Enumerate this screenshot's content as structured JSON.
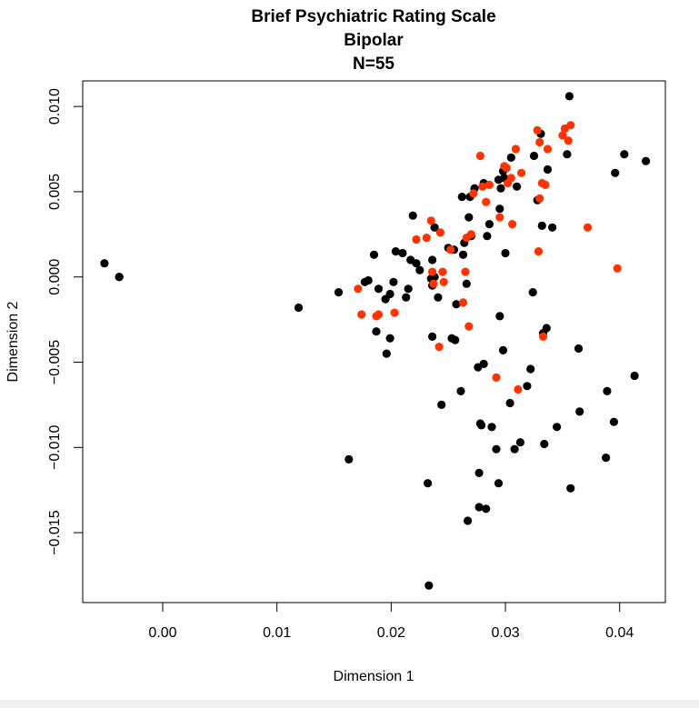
{
  "chart_data": {
    "type": "scatter",
    "title": "Brief Psychiatric Rating Scale",
    "subtitle_lines": [
      "Bipolar",
      "N=55"
    ],
    "xlabel": "Dimension 1",
    "ylabel": "Dimension 2",
    "xlim": [
      -0.007,
      0.044
    ],
    "ylim": [
      -0.0191,
      0.0115
    ],
    "x_ticks": [
      0.0,
      0.01,
      0.02,
      0.03,
      0.04
    ],
    "x_tick_labels": [
      "0.00",
      "0.01",
      "0.02",
      "0.03",
      "0.04"
    ],
    "y_ticks": [
      -0.015,
      -0.01,
      -0.005,
      0.0,
      0.005,
      0.01
    ],
    "y_tick_labels": [
      "−0.015",
      "−0.010",
      "−0.005",
      "0.000",
      "0.005",
      "0.010"
    ],
    "grid": false,
    "legend": "none",
    "series": [
      {
        "color": "#000000",
        "points": [
          [
            -0.0051,
            0.0008
          ],
          [
            -0.0038,
            0.0
          ],
          [
            -0.0038,
            0.0
          ],
          [
            0.0119,
            -0.0018
          ],
          [
            0.0154,
            -0.0009
          ],
          [
            0.0163,
            -0.0107
          ],
          [
            0.0177,
            -0.0003
          ],
          [
            0.018,
            -0.0002
          ],
          [
            0.0185,
            0.0013
          ],
          [
            0.0187,
            -0.0032
          ],
          [
            0.0189,
            -0.0007
          ],
          [
            0.0195,
            -0.0013
          ],
          [
            0.0196,
            -0.0045
          ],
          [
            0.0199,
            -0.0036
          ],
          [
            0.0199,
            -0.001
          ],
          [
            0.0202,
            -0.0003
          ],
          [
            0.0204,
            0.0015
          ],
          [
            0.021,
            0.0014
          ],
          [
            0.0213,
            -0.0012
          ],
          [
            0.0215,
            -0.0007
          ],
          [
            0.0217,
            0.001
          ],
          [
            0.0219,
            0.0036
          ],
          [
            0.0222,
            0.0008
          ],
          [
            0.0225,
            0.0004
          ],
          [
            0.0232,
            -0.0121
          ],
          [
            0.0233,
            -0.0181
          ],
          [
            0.0235,
            -0.0001
          ],
          [
            0.0236,
            -0.0005
          ],
          [
            0.0236,
            0.001
          ],
          [
            0.0236,
            -0.0035
          ],
          [
            0.0238,
            0.0029
          ],
          [
            0.0238,
            0.0
          ],
          [
            0.0241,
            -0.0012
          ],
          [
            0.0244,
            -0.0075
          ],
          [
            0.025,
            0.0017
          ],
          [
            0.0253,
            -0.0036
          ],
          [
            0.0255,
            0.0016
          ],
          [
            0.0256,
            -0.0037
          ],
          [
            0.0257,
            -0.0016
          ],
          [
            0.0261,
            -0.0067
          ],
          [
            0.0262,
            0.0047
          ],
          [
            0.0263,
            0.0013
          ],
          [
            0.0264,
            0.002
          ],
          [
            0.0266,
            -0.0004
          ],
          [
            0.0267,
            -0.0143
          ],
          [
            0.0268,
            0.0035
          ],
          [
            0.0269,
            0.0047
          ],
          [
            0.027,
            0.0024
          ],
          [
            0.0273,
            0.0052
          ],
          [
            0.0276,
            -0.0053
          ],
          [
            0.0277,
            -0.0115
          ],
          [
            0.0277,
            -0.0135
          ],
          [
            0.0278,
            -0.0086
          ],
          [
            0.0279,
            -0.0087
          ],
          [
            0.0281,
            -0.0051
          ],
          [
            0.0281,
            0.0055
          ],
          [
            0.0283,
            -0.0136
          ],
          [
            0.0284,
            0.0024
          ],
          [
            0.0286,
            0.0031
          ],
          [
            0.0288,
            -0.0088
          ],
          [
            0.0292,
            -0.0101
          ],
          [
            0.0294,
            -0.0121
          ],
          [
            0.0294,
            0.0057
          ],
          [
            0.0295,
            0.004
          ],
          [
            0.0295,
            -0.0023
          ],
          [
            0.0296,
            0.0052
          ],
          [
            0.0298,
            0.0062
          ],
          [
            0.0298,
            -0.0043
          ],
          [
            0.0299,
            0.0058
          ],
          [
            0.03,
            0.0014
          ],
          [
            0.0304,
            -0.0074
          ],
          [
            0.0305,
            0.007
          ],
          [
            0.0308,
            -0.0101
          ],
          [
            0.031,
            0.0053
          ],
          [
            0.0313,
            -0.0097
          ],
          [
            0.0319,
            -0.0064
          ],
          [
            0.0322,
            -0.0054
          ],
          [
            0.0324,
            -0.0009
          ],
          [
            0.0325,
            0.0071
          ],
          [
            0.0328,
            0.0045
          ],
          [
            0.0331,
            0.0084
          ],
          [
            0.0332,
            0.003
          ],
          [
            0.0333,
            -0.0033
          ],
          [
            0.0334,
            -0.0098
          ],
          [
            0.0336,
            -0.003
          ],
          [
            0.0337,
            0.0063
          ],
          [
            0.0341,
            0.0029
          ],
          [
            0.0345,
            -0.0088
          ],
          [
            0.0354,
            0.0072
          ],
          [
            0.0356,
            0.0106
          ],
          [
            0.0357,
            -0.0124
          ],
          [
            0.0364,
            -0.0042
          ],
          [
            0.0365,
            -0.0079
          ],
          [
            0.0388,
            -0.0106
          ],
          [
            0.0389,
            -0.0067
          ],
          [
            0.0396,
            0.0061
          ],
          [
            0.0395,
            -0.0085
          ],
          [
            0.0404,
            0.0072
          ],
          [
            0.0413,
            -0.0058
          ],
          [
            0.0423,
            0.0068
          ]
        ]
      },
      {
        "color": "#ff3300",
        "points": [
          [
            0.0171,
            -0.0007
          ],
          [
            0.0174,
            -0.0022
          ],
          [
            0.0187,
            -0.0023
          ],
          [
            0.0189,
            -0.0022
          ],
          [
            0.0203,
            -0.0021
          ],
          [
            0.0222,
            0.0022
          ],
          [
            0.0231,
            0.0023
          ],
          [
            0.0235,
            0.0033
          ],
          [
            0.0236,
            0.0003
          ],
          [
            0.0237,
            -0.0004
          ],
          [
            0.0242,
            -0.0041
          ],
          [
            0.0243,
            0.0026
          ],
          [
            0.0245,
            0.0003
          ],
          [
            0.0246,
            -0.0003
          ],
          [
            0.0252,
            0.0016
          ],
          [
            0.0263,
            -0.0015
          ],
          [
            0.0265,
            0.0003
          ],
          [
            0.0266,
            0.0023
          ],
          [
            0.0268,
            -0.0029
          ],
          [
            0.027,
            0.0025
          ],
          [
            0.0272,
            0.0049
          ],
          [
            0.0278,
            0.0071
          ],
          [
            0.028,
            0.0053
          ],
          [
            0.0283,
            0.0044
          ],
          [
            0.0286,
            0.0054
          ],
          [
            0.0292,
            -0.0059
          ],
          [
            0.0295,
            0.0035
          ],
          [
            0.0299,
            0.0065
          ],
          [
            0.0301,
            0.0064
          ],
          [
            0.0302,
            0.0055
          ],
          [
            0.0305,
            0.0058
          ],
          [
            0.0306,
            0.0031
          ],
          [
            0.0309,
            0.0075
          ],
          [
            0.0311,
            -0.0066
          ],
          [
            0.0314,
            0.0061
          ],
          [
            0.0328,
            0.0086
          ],
          [
            0.0329,
            0.0015
          ],
          [
            0.033,
            0.0046
          ],
          [
            0.033,
            0.0079
          ],
          [
            0.0332,
            0.0055
          ],
          [
            0.0333,
            -0.0035
          ],
          [
            0.0335,
            0.0054
          ],
          [
            0.0337,
            0.0075
          ],
          [
            0.035,
            0.0083
          ],
          [
            0.0352,
            0.0087
          ],
          [
            0.0355,
            0.008
          ],
          [
            0.0357,
            0.0089
          ],
          [
            0.0372,
            0.0029
          ],
          [
            0.0398,
            0.0005
          ]
        ]
      }
    ]
  }
}
